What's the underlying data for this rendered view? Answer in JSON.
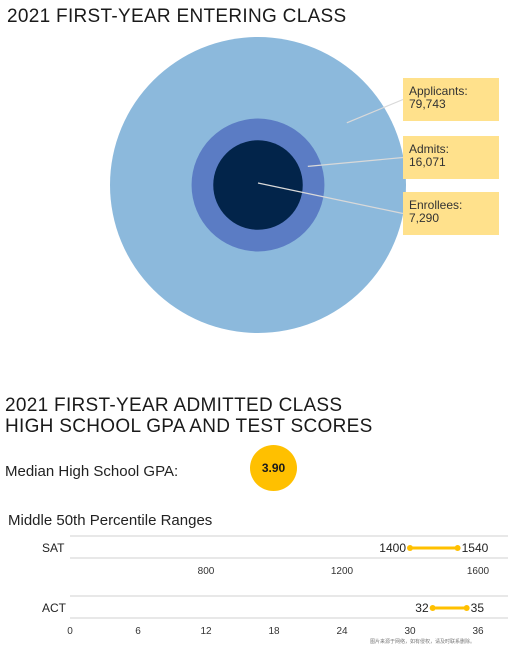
{
  "chart_data": [
    {
      "type": "pie",
      "title": "2021 FIRST-YEAR ENTERING CLASS",
      "categories": [
        "Applicants:",
        "Admits:",
        "Enrollees:"
      ],
      "values": [
        79743,
        16071,
        7290
      ],
      "value_labels": [
        "79,743",
        "16,071",
        "7,290"
      ],
      "colors": [
        "#8cb9dc",
        "#5b7cc4",
        "#02244a"
      ],
      "callout_color": "#ffe18c"
    },
    {
      "type": "scatter",
      "title": "2021 FIRST-YEAR ADMITTED CLASS HIGH SCHOOL GPA AND TEST SCORES",
      "gpa_label": "Median High School GPA:",
      "gpa_value": "3.90",
      "subtitle": "Middle 50th Percentile Ranges",
      "series": [
        {
          "name": "SAT",
          "low": 1400,
          "high": 1540,
          "low_label": "1400",
          "high_label": "1540",
          "axis_ticks": [
            "800",
            "1200",
            "1600"
          ],
          "tick_values": [
            800,
            1200,
            1600
          ]
        },
        {
          "name": "ACT",
          "low": 32,
          "high": 35,
          "low_label": "32",
          "high_label": "35",
          "axis_ticks": [
            "0",
            "6",
            "12",
            "18",
            "24",
            "30",
            "36"
          ],
          "tick_values": [
            0,
            6,
            12,
            18,
            24,
            30,
            36
          ]
        }
      ],
      "range_color": "#ffc000"
    }
  ],
  "watermark": "图片来源于网络，如有侵权，请及时联系删除。"
}
